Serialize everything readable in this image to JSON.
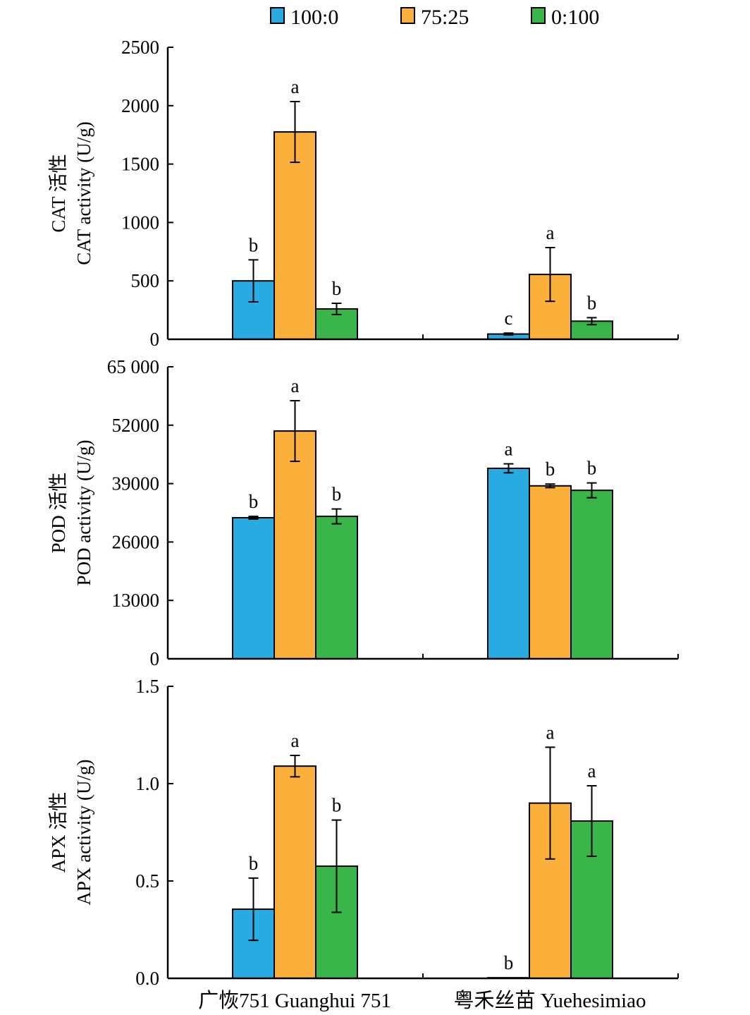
{
  "chart_data": {
    "type": "bar",
    "legend": {
      "placement": "top-center",
      "entries": [
        {
          "name": "100:0",
          "color": "#29abe2"
        },
        {
          "name": "75:25",
          "color": "#fbb03b"
        },
        {
          "name": "0:100",
          "color": "#39b54a"
        }
      ]
    },
    "categories": [
      "广恢751 Guanghui 751",
      "粤禾丝苗 Yuehesimiao"
    ],
    "panels": [
      {
        "id": "cat",
        "ylabel_cn": "CAT 活性",
        "ylabel_en": "CAT activity (U/g)",
        "ylim": [
          0,
          2500
        ],
        "yticks": [
          0,
          500,
          1000,
          1500,
          2000,
          2500
        ],
        "ytick_labels": [
          "0",
          "500",
          "1000",
          "1500",
          "2000",
          "2500"
        ],
        "series": [
          {
            "name": "100:0",
            "values": [
              500,
              45
            ],
            "errors": [
              180,
              8
            ],
            "letters": [
              "b",
              "c"
            ]
          },
          {
            "name": "75:25",
            "values": [
              1775,
              555
            ],
            "errors": [
              260,
              230
            ],
            "letters": [
              "a",
              "a"
            ]
          },
          {
            "name": "0:100",
            "values": [
              260,
              155
            ],
            "errors": [
              48,
              30
            ],
            "letters": [
              "b",
              "b"
            ]
          }
        ]
      },
      {
        "id": "pod",
        "ylabel_cn": "POD 活性",
        "ylabel_en": "POD activity (U/g)",
        "ylim": [
          0,
          65000
        ],
        "yticks": [
          0,
          13000,
          26000,
          39000,
          52000,
          65000
        ],
        "ytick_labels": [
          "0",
          "13000",
          "26000",
          "39000",
          "52000",
          "65 000"
        ],
        "series": [
          {
            "name": "100:0",
            "values": [
              31400,
              42400
            ],
            "errors": [
              300,
              1000
            ],
            "letters": [
              "b",
              "a"
            ]
          },
          {
            "name": "75:25",
            "values": [
              50700,
              38500
            ],
            "errors": [
              6750,
              400
            ],
            "letters": [
              "a",
              "b"
            ]
          },
          {
            "name": "0:100",
            "values": [
              31700,
              37500
            ],
            "errors": [
              1650,
              1650
            ],
            "letters": [
              "b",
              "b"
            ]
          }
        ]
      },
      {
        "id": "apx",
        "ylabel_cn": "APX 活性",
        "ylabel_en": "APX activity (U/g)",
        "ylim": [
          0,
          1.5
        ],
        "yticks": [
          0,
          0.5,
          1.0,
          1.5
        ],
        "ytick_labels": [
          "0.0",
          "0.5",
          "1.0",
          "1.5"
        ],
        "series": [
          {
            "name": "100:0",
            "values": [
              0.355,
              0.003
            ],
            "errors": [
              0.16,
              0.0
            ],
            "letters": [
              "b",
              "b"
            ]
          },
          {
            "name": "75:25",
            "values": [
              1.09,
              0.9
            ],
            "errors": [
              0.055,
              0.287
            ],
            "letters": [
              "a",
              "a"
            ]
          },
          {
            "name": "0:100",
            "values": [
              0.576,
              0.808
            ],
            "errors": [
              0.237,
              0.181
            ],
            "letters": [
              "b",
              "a"
            ]
          }
        ]
      }
    ]
  }
}
